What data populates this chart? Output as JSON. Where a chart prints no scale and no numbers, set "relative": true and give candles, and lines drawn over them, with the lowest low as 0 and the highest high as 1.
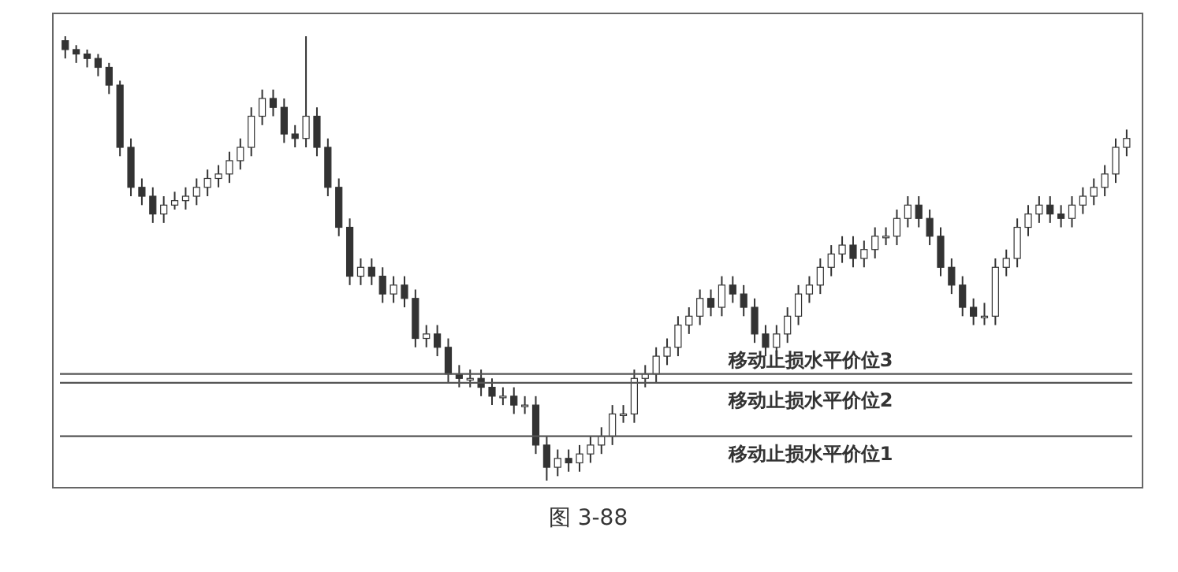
{
  "chart_data": {
    "type": "candlestick",
    "relative": true,
    "color": "#333333",
    "grid": false,
    "legend": false,
    "categories": [
      null,
      null,
      null,
      null,
      null,
      null,
      null,
      null,
      null,
      null,
      null,
      null,
      null,
      null,
      null,
      null,
      null,
      null,
      null,
      null,
      null,
      null,
      null,
      null,
      null,
      null,
      null,
      null,
      null,
      null,
      null,
      null,
      null,
      null,
      null,
      null,
      null,
      null,
      null,
      null,
      null,
      null,
      null,
      null,
      null,
      null,
      null,
      null,
      null,
      null,
      null,
      null,
      null,
      null,
      null,
      null,
      null,
      null,
      null,
      null,
      null,
      null,
      null,
      null,
      null,
      null,
      null,
      null,
      null,
      null,
      null,
      null,
      null,
      null,
      null,
      null,
      null,
      null,
      null,
      null,
      null,
      null,
      null,
      null,
      null,
      null,
      null,
      null,
      null,
      null,
      null,
      null,
      null,
      null,
      null,
      null,
      null,
      null
    ],
    "ohlc": [
      [
        0.99,
        1.0,
        0.95,
        0.97
      ],
      [
        0.97,
        0.98,
        0.94,
        0.96
      ],
      [
        0.96,
        0.97,
        0.93,
        0.95
      ],
      [
        0.95,
        0.96,
        0.91,
        0.93
      ],
      [
        0.93,
        0.94,
        0.87,
        0.89
      ],
      [
        0.89,
        0.9,
        0.73,
        0.75
      ],
      [
        0.75,
        0.77,
        0.64,
        0.66
      ],
      [
        0.66,
        0.68,
        0.62,
        0.64
      ],
      [
        0.64,
        0.66,
        0.58,
        0.6
      ],
      [
        0.6,
        0.64,
        0.58,
        0.62
      ],
      [
        0.62,
        0.65,
        0.61,
        0.63
      ],
      [
        0.63,
        0.66,
        0.61,
        0.64
      ],
      [
        0.64,
        0.68,
        0.62,
        0.66
      ],
      [
        0.66,
        0.7,
        0.64,
        0.68
      ],
      [
        0.68,
        0.71,
        0.66,
        0.69
      ],
      [
        0.69,
        0.74,
        0.67,
        0.72
      ],
      [
        0.72,
        0.77,
        0.7,
        0.75
      ],
      [
        0.75,
        0.84,
        0.73,
        0.82
      ],
      [
        0.82,
        0.88,
        0.8,
        0.86
      ],
      [
        0.86,
        0.88,
        0.82,
        0.84
      ],
      [
        0.84,
        0.86,
        0.76,
        0.78
      ],
      [
        0.78,
        0.8,
        0.75,
        0.77
      ],
      [
        0.77,
        1.0,
        0.75,
        0.82
      ],
      [
        0.82,
        0.84,
        0.73,
        0.75
      ],
      [
        0.75,
        0.77,
        0.64,
        0.66
      ],
      [
        0.66,
        0.68,
        0.55,
        0.57
      ],
      [
        0.57,
        0.59,
        0.44,
        0.46
      ],
      [
        0.46,
        0.5,
        0.44,
        0.48
      ],
      [
        0.48,
        0.5,
        0.44,
        0.46
      ],
      [
        0.46,
        0.48,
        0.4,
        0.42
      ],
      [
        0.42,
        0.46,
        0.4,
        0.44
      ],
      [
        0.44,
        0.46,
        0.39,
        0.41
      ],
      [
        0.41,
        0.43,
        0.3,
        0.32
      ],
      [
        0.32,
        0.35,
        0.3,
        0.33
      ],
      [
        0.33,
        0.35,
        0.28,
        0.3
      ],
      [
        0.3,
        0.32,
        0.22,
        0.24
      ],
      [
        0.24,
        0.26,
        0.21,
        0.23
      ],
      [
        0.23,
        0.25,
        0.21,
        0.23
      ],
      [
        0.23,
        0.25,
        0.19,
        0.21
      ],
      [
        0.21,
        0.23,
        0.17,
        0.19
      ],
      [
        0.19,
        0.21,
        0.17,
        0.19
      ],
      [
        0.19,
        0.21,
        0.15,
        0.17
      ],
      [
        0.17,
        0.19,
        0.15,
        0.17
      ],
      [
        0.17,
        0.19,
        0.06,
        0.08
      ],
      [
        0.08,
        0.1,
        0.0,
        0.03
      ],
      [
        0.03,
        0.07,
        0.01,
        0.05
      ],
      [
        0.05,
        0.07,
        0.02,
        0.04
      ],
      [
        0.04,
        0.08,
        0.02,
        0.06
      ],
      [
        0.06,
        0.1,
        0.04,
        0.08
      ],
      [
        0.08,
        0.12,
        0.06,
        0.1
      ],
      [
        0.1,
        0.17,
        0.08,
        0.15
      ],
      [
        0.15,
        0.17,
        0.13,
        0.15
      ],
      [
        0.15,
        0.25,
        0.13,
        0.23
      ],
      [
        0.23,
        0.26,
        0.21,
        0.24
      ],
      [
        0.24,
        0.3,
        0.22,
        0.28
      ],
      [
        0.28,
        0.32,
        0.26,
        0.3
      ],
      [
        0.3,
        0.37,
        0.28,
        0.35
      ],
      [
        0.35,
        0.39,
        0.33,
        0.37
      ],
      [
        0.37,
        0.43,
        0.35,
        0.41
      ],
      [
        0.41,
        0.43,
        0.37,
        0.39
      ],
      [
        0.39,
        0.46,
        0.37,
        0.44
      ],
      [
        0.44,
        0.46,
        0.4,
        0.42
      ],
      [
        0.42,
        0.44,
        0.37,
        0.39
      ],
      [
        0.39,
        0.41,
        0.31,
        0.33
      ],
      [
        0.33,
        0.35,
        0.28,
        0.3
      ],
      [
        0.3,
        0.35,
        0.28,
        0.33
      ],
      [
        0.33,
        0.39,
        0.31,
        0.37
      ],
      [
        0.37,
        0.44,
        0.35,
        0.42
      ],
      [
        0.42,
        0.46,
        0.4,
        0.44
      ],
      [
        0.44,
        0.5,
        0.42,
        0.48
      ],
      [
        0.48,
        0.53,
        0.46,
        0.51
      ],
      [
        0.51,
        0.55,
        0.49,
        0.53
      ],
      [
        0.53,
        0.55,
        0.48,
        0.5
      ],
      [
        0.5,
        0.54,
        0.48,
        0.52
      ],
      [
        0.52,
        0.57,
        0.5,
        0.55
      ],
      [
        0.55,
        0.57,
        0.53,
        0.55
      ],
      [
        0.55,
        0.61,
        0.53,
        0.59
      ],
      [
        0.59,
        0.64,
        0.57,
        0.62
      ],
      [
        0.62,
        0.64,
        0.57,
        0.59
      ],
      [
        0.59,
        0.61,
        0.53,
        0.55
      ],
      [
        0.55,
        0.57,
        0.46,
        0.48
      ],
      [
        0.48,
        0.5,
        0.42,
        0.44
      ],
      [
        0.44,
        0.46,
        0.37,
        0.39
      ],
      [
        0.39,
        0.41,
        0.35,
        0.37
      ],
      [
        0.37,
        0.4,
        0.35,
        0.37
      ],
      [
        0.37,
        0.5,
        0.35,
        0.48
      ],
      [
        0.48,
        0.52,
        0.46,
        0.5
      ],
      [
        0.5,
        0.59,
        0.48,
        0.57
      ],
      [
        0.57,
        0.62,
        0.55,
        0.6
      ],
      [
        0.6,
        0.64,
        0.58,
        0.62
      ],
      [
        0.62,
        0.64,
        0.58,
        0.6
      ],
      [
        0.6,
        0.62,
        0.57,
        0.59
      ],
      [
        0.59,
        0.64,
        0.57,
        0.62
      ],
      [
        0.62,
        0.66,
        0.6,
        0.64
      ],
      [
        0.64,
        0.68,
        0.62,
        0.66
      ],
      [
        0.66,
        0.71,
        0.64,
        0.69
      ],
      [
        0.69,
        0.77,
        0.67,
        0.75
      ],
      [
        0.75,
        0.79,
        0.73,
        0.77
      ]
    ],
    "ref_lines": [
      {
        "axis": "y",
        "value": 0.24,
        "label": "移动止损水平价位3",
        "color": "#555555"
      },
      {
        "axis": "y",
        "value": 0.22,
        "label": "移动止损水平价位2",
        "color": "#555555"
      },
      {
        "axis": "y",
        "value": 0.1,
        "label": "移动止损水平价位1",
        "color": "#555555"
      }
    ],
    "annotations": [
      "图 3-88"
    ]
  }
}
